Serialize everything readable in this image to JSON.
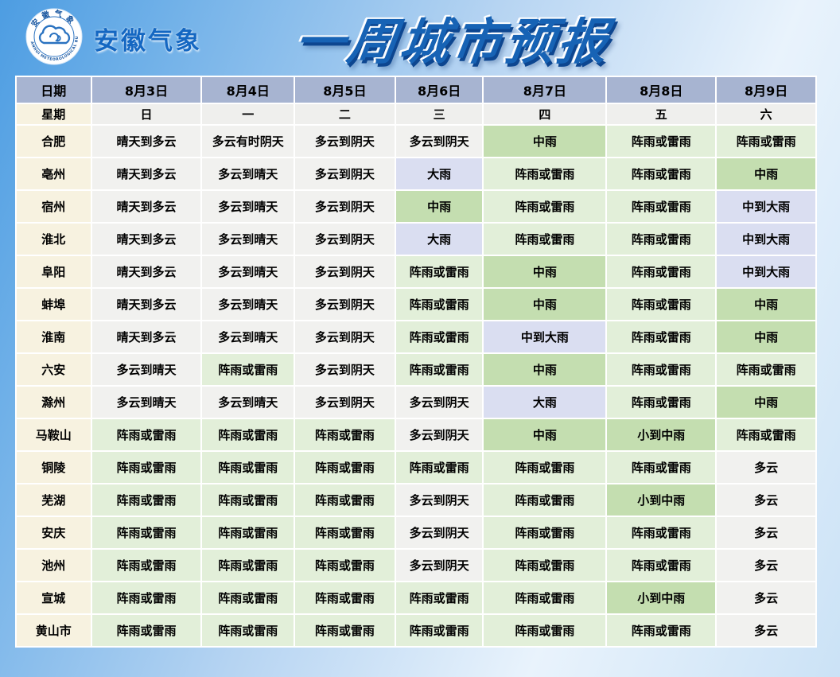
{
  "header": {
    "brand_name": "安徽气象",
    "logo": {
      "ring_text_top": "安徽气象",
      "ring_text_bottom": "ANHUI METEOROLOGICAL BUREAU"
    },
    "title": "一周城市预报"
  },
  "chart_data": {
    "type": "table",
    "title": "一周城市预报",
    "corner_label": "日期",
    "dates": [
      "8月3日",
      "8月4日",
      "8月5日",
      "8月6日",
      "8月7日",
      "8月8日",
      "8月9日"
    ],
    "week_label": "星期",
    "weekdays": [
      "日",
      "一",
      "二",
      "三",
      "四",
      "五",
      "六"
    ],
    "rows": [
      {
        "city": "合肥",
        "cells": [
          {
            "t": "晴天到多云",
            "c": "plain"
          },
          {
            "t": "多云有时阴天",
            "c": "plain"
          },
          {
            "t": "多云到阴天",
            "c": "plain"
          },
          {
            "t": "多云到阴天",
            "c": "plain"
          },
          {
            "t": "中雨",
            "c": "mg"
          },
          {
            "t": "阵雨或雷雨",
            "c": "lg"
          },
          {
            "t": "阵雨或雷雨",
            "c": "lg"
          }
        ]
      },
      {
        "city": "亳州",
        "cells": [
          {
            "t": "晴天到多云",
            "c": "plain"
          },
          {
            "t": "多云到晴天",
            "c": "plain"
          },
          {
            "t": "多云到阴天",
            "c": "plain"
          },
          {
            "t": "大雨",
            "c": "lav"
          },
          {
            "t": "阵雨或雷雨",
            "c": "lg"
          },
          {
            "t": "阵雨或雷雨",
            "c": "lg"
          },
          {
            "t": "中雨",
            "c": "mg"
          }
        ]
      },
      {
        "city": "宿州",
        "cells": [
          {
            "t": "晴天到多云",
            "c": "plain"
          },
          {
            "t": "多云到晴天",
            "c": "plain"
          },
          {
            "t": "多云到阴天",
            "c": "plain"
          },
          {
            "t": "中雨",
            "c": "mg"
          },
          {
            "t": "阵雨或雷雨",
            "c": "lg"
          },
          {
            "t": "阵雨或雷雨",
            "c": "lg"
          },
          {
            "t": "中到大雨",
            "c": "lav"
          }
        ]
      },
      {
        "city": "淮北",
        "cells": [
          {
            "t": "晴天到多云",
            "c": "plain"
          },
          {
            "t": "多云到晴天",
            "c": "plain"
          },
          {
            "t": "多云到阴天",
            "c": "plain"
          },
          {
            "t": "大雨",
            "c": "lav"
          },
          {
            "t": "阵雨或雷雨",
            "c": "lg"
          },
          {
            "t": "阵雨或雷雨",
            "c": "lg"
          },
          {
            "t": "中到大雨",
            "c": "lav"
          }
        ]
      },
      {
        "city": "阜阳",
        "cells": [
          {
            "t": "晴天到多云",
            "c": "plain"
          },
          {
            "t": "多云到晴天",
            "c": "plain"
          },
          {
            "t": "多云到阴天",
            "c": "plain"
          },
          {
            "t": "阵雨或雷雨",
            "c": "lg"
          },
          {
            "t": "中雨",
            "c": "mg"
          },
          {
            "t": "阵雨或雷雨",
            "c": "lg"
          },
          {
            "t": "中到大雨",
            "c": "lav"
          }
        ]
      },
      {
        "city": "蚌埠",
        "cells": [
          {
            "t": "晴天到多云",
            "c": "plain"
          },
          {
            "t": "多云到晴天",
            "c": "plain"
          },
          {
            "t": "多云到阴天",
            "c": "plain"
          },
          {
            "t": "阵雨或雷雨",
            "c": "lg"
          },
          {
            "t": "中雨",
            "c": "mg"
          },
          {
            "t": "阵雨或雷雨",
            "c": "lg"
          },
          {
            "t": "中雨",
            "c": "mg"
          }
        ]
      },
      {
        "city": "淮南",
        "cells": [
          {
            "t": "晴天到多云",
            "c": "plain"
          },
          {
            "t": "多云到晴天",
            "c": "plain"
          },
          {
            "t": "多云到阴天",
            "c": "plain"
          },
          {
            "t": "阵雨或雷雨",
            "c": "lg"
          },
          {
            "t": "中到大雨",
            "c": "lav"
          },
          {
            "t": "阵雨或雷雨",
            "c": "lg"
          },
          {
            "t": "中雨",
            "c": "mg"
          }
        ]
      },
      {
        "city": "六安",
        "cells": [
          {
            "t": "多云到晴天",
            "c": "plain"
          },
          {
            "t": "阵雨或雷雨",
            "c": "lg"
          },
          {
            "t": "多云到阴天",
            "c": "plain"
          },
          {
            "t": "阵雨或雷雨",
            "c": "lg"
          },
          {
            "t": "中雨",
            "c": "mg"
          },
          {
            "t": "阵雨或雷雨",
            "c": "lg"
          },
          {
            "t": "阵雨或雷雨",
            "c": "lg"
          }
        ]
      },
      {
        "city": "滁州",
        "cells": [
          {
            "t": "多云到晴天",
            "c": "plain"
          },
          {
            "t": "多云到晴天",
            "c": "plain"
          },
          {
            "t": "多云到阴天",
            "c": "plain"
          },
          {
            "t": "多云到阴天",
            "c": "plain"
          },
          {
            "t": "大雨",
            "c": "lav"
          },
          {
            "t": "阵雨或雷雨",
            "c": "lg"
          },
          {
            "t": "中雨",
            "c": "mg"
          }
        ]
      },
      {
        "city": "马鞍山",
        "cells": [
          {
            "t": "阵雨或雷雨",
            "c": "lg"
          },
          {
            "t": "阵雨或雷雨",
            "c": "lg"
          },
          {
            "t": "阵雨或雷雨",
            "c": "lg"
          },
          {
            "t": "多云到阴天",
            "c": "plain"
          },
          {
            "t": "中雨",
            "c": "mg"
          },
          {
            "t": "小到中雨",
            "c": "mg"
          },
          {
            "t": "阵雨或雷雨",
            "c": "lg"
          }
        ]
      },
      {
        "city": "铜陵",
        "cells": [
          {
            "t": "阵雨或雷雨",
            "c": "lg"
          },
          {
            "t": "阵雨或雷雨",
            "c": "lg"
          },
          {
            "t": "阵雨或雷雨",
            "c": "lg"
          },
          {
            "t": "阵雨或雷雨",
            "c": "lg"
          },
          {
            "t": "阵雨或雷雨",
            "c": "lg"
          },
          {
            "t": "阵雨或雷雨",
            "c": "lg"
          },
          {
            "t": "多云",
            "c": "plain"
          }
        ]
      },
      {
        "city": "芜湖",
        "cells": [
          {
            "t": "阵雨或雷雨",
            "c": "lg"
          },
          {
            "t": "阵雨或雷雨",
            "c": "lg"
          },
          {
            "t": "阵雨或雷雨",
            "c": "lg"
          },
          {
            "t": "多云到阴天",
            "c": "plain"
          },
          {
            "t": "阵雨或雷雨",
            "c": "lg"
          },
          {
            "t": "小到中雨",
            "c": "mg"
          },
          {
            "t": "多云",
            "c": "plain"
          }
        ]
      },
      {
        "city": "安庆",
        "cells": [
          {
            "t": "阵雨或雷雨",
            "c": "lg"
          },
          {
            "t": "阵雨或雷雨",
            "c": "lg"
          },
          {
            "t": "阵雨或雷雨",
            "c": "lg"
          },
          {
            "t": "多云到阴天",
            "c": "plain"
          },
          {
            "t": "阵雨或雷雨",
            "c": "lg"
          },
          {
            "t": "阵雨或雷雨",
            "c": "lg"
          },
          {
            "t": "多云",
            "c": "plain"
          }
        ]
      },
      {
        "city": "池州",
        "cells": [
          {
            "t": "阵雨或雷雨",
            "c": "lg"
          },
          {
            "t": "阵雨或雷雨",
            "c": "lg"
          },
          {
            "t": "阵雨或雷雨",
            "c": "lg"
          },
          {
            "t": "多云到阴天",
            "c": "plain"
          },
          {
            "t": "阵雨或雷雨",
            "c": "lg"
          },
          {
            "t": "阵雨或雷雨",
            "c": "lg"
          },
          {
            "t": "多云",
            "c": "plain"
          }
        ]
      },
      {
        "city": "宣城",
        "cells": [
          {
            "t": "阵雨或雷雨",
            "c": "lg"
          },
          {
            "t": "阵雨或雷雨",
            "c": "lg"
          },
          {
            "t": "阵雨或雷雨",
            "c": "lg"
          },
          {
            "t": "阵雨或雷雨",
            "c": "lg"
          },
          {
            "t": "阵雨或雷雨",
            "c": "lg"
          },
          {
            "t": "小到中雨",
            "c": "mg"
          },
          {
            "t": "多云",
            "c": "plain"
          }
        ]
      },
      {
        "city": "黄山市",
        "cells": [
          {
            "t": "阵雨或雷雨",
            "c": "lg"
          },
          {
            "t": "阵雨或雷雨",
            "c": "lg"
          },
          {
            "t": "阵雨或雷雨",
            "c": "lg"
          },
          {
            "t": "阵雨或雷雨",
            "c": "lg"
          },
          {
            "t": "阵雨或雷雨",
            "c": "lg"
          },
          {
            "t": "阵雨或雷雨",
            "c": "lg"
          },
          {
            "t": "多云",
            "c": "plain"
          }
        ]
      }
    ],
    "cell_colors": {
      "plain": "#f1f1ef",
      "lg": "#e2efd9",
      "mg": "#c4deb0",
      "lav": "#dadef1",
      "header_bg": "#a7b4d1",
      "city_col_bg": "#f7f2e0"
    }
  }
}
